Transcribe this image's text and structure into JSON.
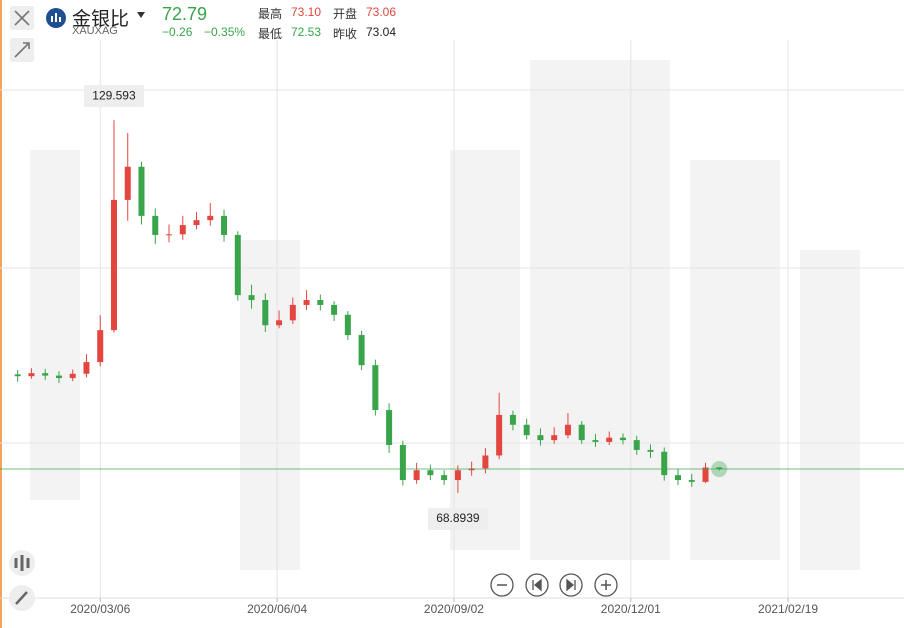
{
  "chart_data": {
    "type": "candlestick",
    "title": "金银比",
    "symbol": "XAUXAG",
    "price": 72.79,
    "change": "−0.26",
    "change_pct": "−0.35%",
    "stats": [
      {
        "label": "最高",
        "value": "73.10"
      },
      {
        "label": "开盘",
        "value": "73.06"
      },
      {
        "label": "最低",
        "value": "72.53"
      },
      {
        "label": "昨收",
        "value": "73.04"
      }
    ],
    "x": [
      "2020/01/24",
      "2020/01/31",
      "2020/02/07",
      "2020/02/14",
      "2020/02/21",
      "2020/02/28",
      "2020/03/06",
      "2020/03/13",
      "2020/03/20",
      "2020/03/27",
      "2020/04/03",
      "2020/04/10",
      "2020/04/17",
      "2020/04/24",
      "2020/05/01",
      "2020/05/08",
      "2020/05/15",
      "2020/05/22",
      "2020/05/29",
      "2020/06/05",
      "2020/06/12",
      "2020/06/19",
      "2020/06/26",
      "2020/07/03",
      "2020/07/10",
      "2020/07/17",
      "2020/07/24",
      "2020/07/31",
      "2020/08/07",
      "2020/08/14",
      "2020/08/21",
      "2020/08/28",
      "2020/09/04",
      "2020/09/11",
      "2020/09/18",
      "2020/09/25",
      "2020/10/02",
      "2020/10/09",
      "2020/10/16",
      "2020/10/23",
      "2020/10/30",
      "2020/11/06",
      "2020/11/13",
      "2020/11/20",
      "2020/11/27",
      "2020/12/04",
      "2020/12/11",
      "2020/12/18",
      "2020/12/25",
      "2021/01/01",
      "2021/01/08",
      "2021/01/15"
    ],
    "open": [
      88.2,
      87.9,
      88.4,
      88.0,
      87.6,
      88.3,
      90.2,
      95.4,
      116.6,
      122.0,
      114.0,
      110.9,
      111.0,
      112.5,
      113.3,
      114.0,
      110.9,
      101.1,
      100.3,
      96.2,
      97.0,
      99.5,
      100.3,
      99.5,
      97.9,
      94.6,
      89.7,
      82.4,
      76.7,
      71.0,
      72.6,
      71.8,
      71.0,
      72.6,
      72.9,
      75.0,
      81.6,
      80.0,
      78.3,
      77.5,
      78.3,
      80.0,
      77.5,
      77.2,
      77.9,
      77.5,
      75.9,
      75.6,
      71.8,
      71.0,
      70.7,
      73.06
    ],
    "high": [
      88.9,
      89.2,
      89.1,
      88.7,
      89.0,
      91.5,
      97.8,
      129.593,
      127.5,
      122.8,
      115.2,
      112.6,
      114.0,
      114.6,
      116.1,
      115.0,
      111.5,
      102.8,
      101.4,
      98.6,
      100.7,
      101.9,
      101.2,
      100.1,
      98.5,
      95.3,
      90.6,
      83.5,
      77.4,
      73.8,
      73.5,
      72.6,
      73.4,
      74.0,
      76.2,
      85.2,
      82.3,
      81.0,
      79.4,
      79.6,
      81.9,
      80.6,
      78.5,
      78.9,
      78.6,
      78.2,
      76.8,
      76.3,
      72.9,
      72.0,
      73.8,
      73.1
    ],
    "low": [
      87.0,
      87.5,
      87.3,
      86.8,
      87.1,
      87.7,
      89.5,
      95.0,
      113.2,
      112.6,
      109.4,
      109.7,
      110.1,
      111.8,
      112.4,
      109.8,
      100.2,
      98.9,
      95.1,
      95.7,
      96.4,
      98.7,
      98.6,
      96.9,
      93.8,
      88.9,
      81.5,
      75.4,
      70.1,
      70.4,
      71.0,
      70.2,
      68.8939,
      71.7,
      72.1,
      74.4,
      79.1,
      77.6,
      76.6,
      76.9,
      77.8,
      76.9,
      76.4,
      76.7,
      76.8,
      75.1,
      74.6,
      70.9,
      70.2,
      69.9,
      70.5,
      72.53
    ],
    "close": [
      87.9,
      88.4,
      88.0,
      87.6,
      88.3,
      90.2,
      95.4,
      116.6,
      122.0,
      114.0,
      110.9,
      111.0,
      112.5,
      113.3,
      114.0,
      110.9,
      101.1,
      100.3,
      96.2,
      97.0,
      99.5,
      100.3,
      99.5,
      97.9,
      94.6,
      89.7,
      82.4,
      76.7,
      71.0,
      72.6,
      71.8,
      71.0,
      72.6,
      72.9,
      75.0,
      81.6,
      80.0,
      78.3,
      77.5,
      78.3,
      80.0,
      77.5,
      77.2,
      77.9,
      77.5,
      75.9,
      75.6,
      71.8,
      71.0,
      70.7,
      73.04,
      72.79
    ],
    "up_color": "#e2463f",
    "down_color": "#3aa44a",
    "xlim": [
      "2020/01/15",
      "2021/04/19"
    ],
    "xticks": [
      "2020/03/06",
      "2020/06/04",
      "2020/09/02",
      "2020/12/01",
      "2021/02/19"
    ],
    "ylim": [
      51.8,
      141
    ],
    "grid": true
  }
}
